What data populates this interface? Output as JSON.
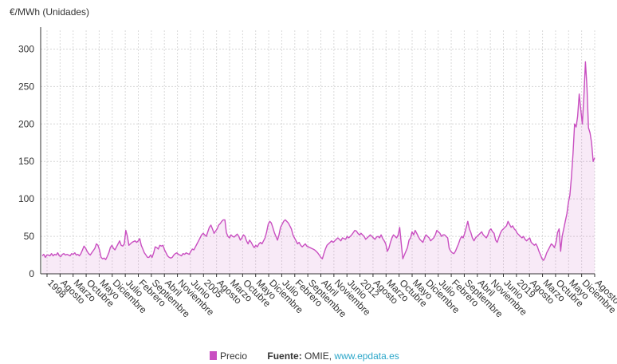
{
  "chart_data": {
    "type": "area",
    "ylabel": "€/MWh (Unidades)",
    "ylim": [
      0,
      325
    ],
    "yticks": [
      0,
      50,
      100,
      150,
      200,
      250,
      300
    ],
    "grid": true,
    "legend_position": "bottom-center",
    "series": [
      {
        "name": "Precio",
        "color": "#c94fc1",
        "values": [
          24,
          26,
          22,
          25,
          25,
          24,
          27,
          24,
          26,
          25,
          28,
          24,
          23,
          26,
          27,
          25,
          26,
          25,
          24,
          27,
          26,
          28,
          25,
          26,
          24,
          27,
          32,
          37,
          34,
          30,
          27,
          25,
          28,
          31,
          34,
          40,
          38,
          32,
          22,
          20,
          21,
          19,
          23,
          28,
          35,
          38,
          34,
          32,
          36,
          40,
          44,
          38,
          37,
          40,
          58,
          50,
          38,
          40,
          42,
          43,
          44,
          42,
          44,
          47,
          38,
          33,
          28,
          25,
          22,
          22,
          25,
          22,
          28,
          36,
          35,
          33,
          38,
          37,
          38,
          32,
          28,
          24,
          22,
          21,
          22,
          25,
          27,
          28,
          26,
          25,
          24,
          27,
          26,
          28,
          27,
          26,
          30,
          33,
          32,
          36,
          40,
          44,
          48,
          52,
          54,
          52,
          50,
          56,
          62,
          65,
          60,
          54,
          57,
          60,
          65,
          67,
          70,
          72,
          72,
          55,
          50,
          48,
          52,
          50,
          49,
          51,
          53,
          50,
          45,
          48,
          52,
          50,
          44,
          40,
          45,
          42,
          38,
          35,
          38,
          36,
          40,
          42,
          40,
          44,
          48,
          56,
          66,
          70,
          68,
          62,
          55,
          50,
          45,
          52,
          62,
          66,
          70,
          72,
          70,
          68,
          64,
          60,
          52,
          48,
          44,
          40,
          42,
          38,
          36,
          38,
          40,
          37,
          36,
          35,
          34,
          33,
          32,
          30,
          28,
          25,
          22,
          20,
          27,
          33,
          38,
          40,
          42,
          44,
          42,
          44,
          46,
          48,
          46,
          44,
          48,
          47,
          46,
          50,
          48,
          50,
          52,
          55,
          58,
          57,
          54,
          52,
          54,
          52,
          50,
          46,
          48,
          50,
          52,
          50,
          48,
          46,
          49,
          50,
          48,
          52,
          47,
          44,
          40,
          30,
          34,
          42,
          48,
          52,
          50,
          48,
          52,
          62,
          40,
          20,
          25,
          30,
          35,
          45,
          48,
          56,
          52,
          58,
          54,
          50,
          46,
          44,
          42,
          48,
          52,
          50,
          48,
          44,
          46,
          48,
          52,
          58,
          56,
          54,
          50,
          52,
          52,
          50,
          48,
          34,
          30,
          28,
          27,
          30,
          35,
          40,
          46,
          50,
          48,
          54,
          62,
          70,
          60,
          55,
          48,
          44,
          48,
          50,
          52,
          54,
          56,
          52,
          50,
          48,
          52,
          58,
          60,
          56,
          54,
          45,
          42,
          48,
          54,
          58,
          60,
          62,
          64,
          70,
          66,
          62,
          64,
          60,
          58,
          54,
          52,
          50,
          48,
          50,
          46,
          44,
          46,
          48,
          42,
          40,
          38,
          40,
          36,
          30,
          25,
          20,
          18,
          22,
          28,
          32,
          36,
          40,
          38,
          35,
          42,
          55,
          60,
          30,
          50,
          60,
          70,
          80,
          95,
          105,
          130,
          160,
          200,
          196,
          210,
          240,
          220,
          200,
          235,
          283,
          250,
          195,
          188,
          175,
          150,
          155
        ]
      }
    ],
    "x_tick_labels": [
      "1998",
      "Agosto",
      "Marzo",
      "Octubre",
      "Mayo",
      "Diciembre",
      "Julio",
      "Febrero",
      "Septiembre",
      "Abril",
      "Noviembre",
      "Junio",
      "2005",
      "Agosto",
      "Marzo",
      "Octubre",
      "Mayo",
      "Diciembre",
      "Julio",
      "Febrero",
      "Septiembre",
      "Abril",
      "Noviembre",
      "Junio",
      "2012",
      "Agosto",
      "Marzo",
      "Octubre",
      "Mayo",
      "Diciembre",
      "Julio",
      "Febrero",
      "Septiembre",
      "Abril",
      "Noviembre",
      "Junio",
      "2019",
      "Agosto",
      "Marzo",
      "Octubre",
      "Mayo",
      "Diciembre",
      "Agosto"
    ]
  },
  "legend": {
    "series_label": "Precio",
    "source_prefix": "Fuente:",
    "source_name": "OMIE,",
    "source_link": "www.epdata.es"
  }
}
